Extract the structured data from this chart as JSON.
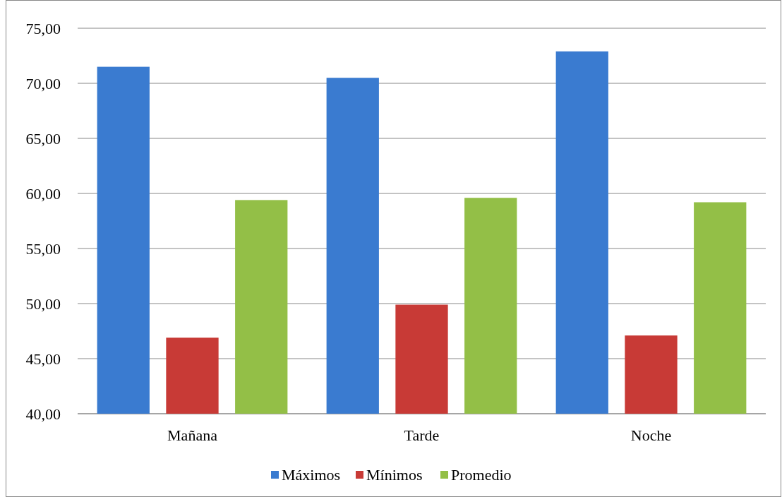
{
  "chart_data": {
    "type": "bar",
    "categories": [
      "Mañana",
      "Tarde",
      "Noche"
    ],
    "series": [
      {
        "name": "Máximos",
        "color": "#3a7bd0",
        "values": [
          71.5,
          70.5,
          72.9
        ]
      },
      {
        "name": "Mínimos",
        "color": "#c83a36",
        "values": [
          46.9,
          49.9,
          47.1
        ]
      },
      {
        "name": "Promedio",
        "color": "#93bf47",
        "values": [
          59.4,
          59.6,
          59.2
        ]
      }
    ],
    "ylim": [
      40,
      75
    ],
    "yticks": [
      {
        "value": 40,
        "label": "40,00"
      },
      {
        "value": 45,
        "label": "45,00"
      },
      {
        "value": 50,
        "label": "50,00"
      },
      {
        "value": 55,
        "label": "55,00"
      },
      {
        "value": 60,
        "label": "60,00"
      },
      {
        "value": 65,
        "label": "65,00"
      },
      {
        "value": 70,
        "label": "70,00"
      },
      {
        "value": 75,
        "label": "75,00"
      }
    ],
    "grid": "y",
    "legend": "bottom"
  }
}
